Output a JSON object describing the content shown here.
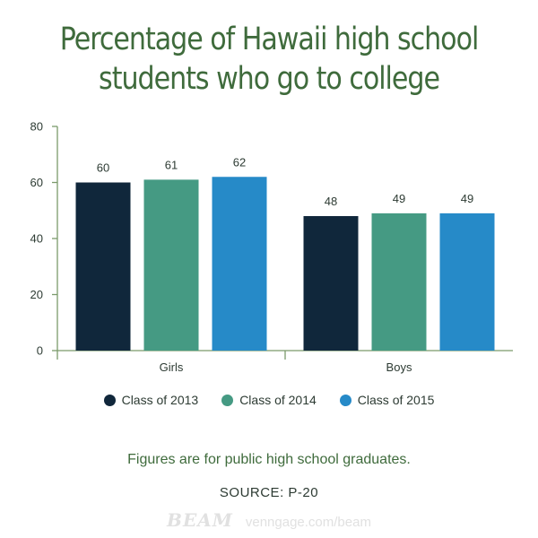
{
  "chart_data": {
    "type": "bar",
    "title": [
      "Percentage of Hawaii high school",
      "students who go to college"
    ],
    "categories": [
      "Girls",
      "Boys"
    ],
    "series": [
      {
        "name": "Class of 2013",
        "values": [
          60,
          48
        ],
        "color": "#10273b"
      },
      {
        "name": "Class of 2014",
        "values": [
          61,
          49
        ],
        "color": "#459a83"
      },
      {
        "name": "Class of 2015",
        "values": [
          62,
          49
        ],
        "color": "#268ac8"
      }
    ],
    "ylim": [
      0,
      80
    ],
    "yticks": [
      0,
      20,
      40,
      60,
      80
    ],
    "xlabel": "",
    "ylabel": "",
    "grid": false,
    "legend_position": "bottom-center",
    "data_labels": true
  },
  "footnote": "Figures are for public high school graduates.",
  "source": "SOURCE: P-20",
  "brand": {
    "logo": "BEAM",
    "url": "venngage.com/beam"
  },
  "colors": {
    "title": "#3f6b3c",
    "axis": "#7b9a6b",
    "label": "#2d3b33"
  }
}
